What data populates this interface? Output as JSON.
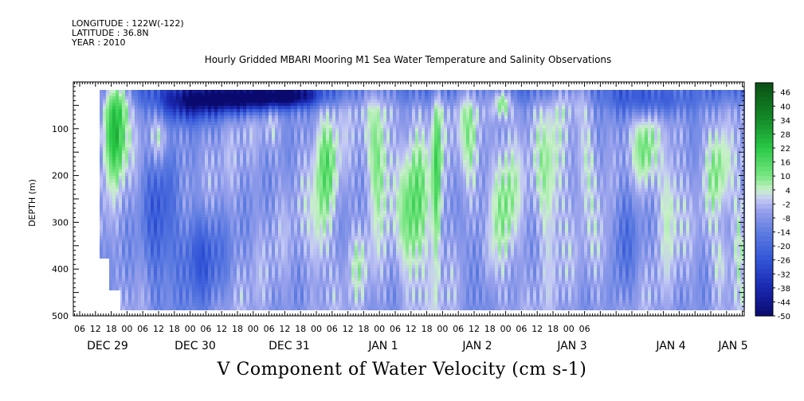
{
  "header": {
    "longitude": "LONGITUDE : 122W(-122)",
    "latitude": "LATITUDE : 36.8N",
    "year": "YEAR : 2010"
  },
  "chart_data": {
    "type": "heatmap",
    "title": "Hourly Gridded MBARI Mooring M1 Sea Water Temperature and Salinity Observations",
    "xlabel": "V Component of Water Velocity (cm s-1)",
    "ylabel": "DEPTH (m)",
    "ylim": [
      500,
      0
    ],
    "y_ticks": [
      100,
      200,
      300,
      400,
      500
    ],
    "x_hour_ticks": [
      "06",
      "12",
      "18",
      "00",
      "06",
      "12",
      "18",
      "00",
      "06",
      "12",
      "18",
      "00",
      "06",
      "12",
      "18",
      "00",
      "06",
      "12",
      "18",
      "00",
      "06",
      "12",
      "18",
      "00",
      "06",
      "12",
      "18",
      "00",
      "06",
      "12",
      "18",
      "00",
      "06"
    ],
    "x_date_labels": [
      "DEC 29",
      "DEC 30",
      "DEC 31",
      "JAN  1",
      "JAN  2",
      "JAN  3",
      "JAN  4",
      "JAN 5"
    ],
    "data_depth_range": [
      20,
      485
    ],
    "colorbar": {
      "levels": [
        46,
        40,
        34,
        28,
        22,
        16,
        10,
        4,
        -2,
        -8,
        -14,
        -20,
        -26,
        -32,
        -38,
        -44,
        -50
      ],
      "range": [
        -50,
        50
      ]
    }
  }
}
